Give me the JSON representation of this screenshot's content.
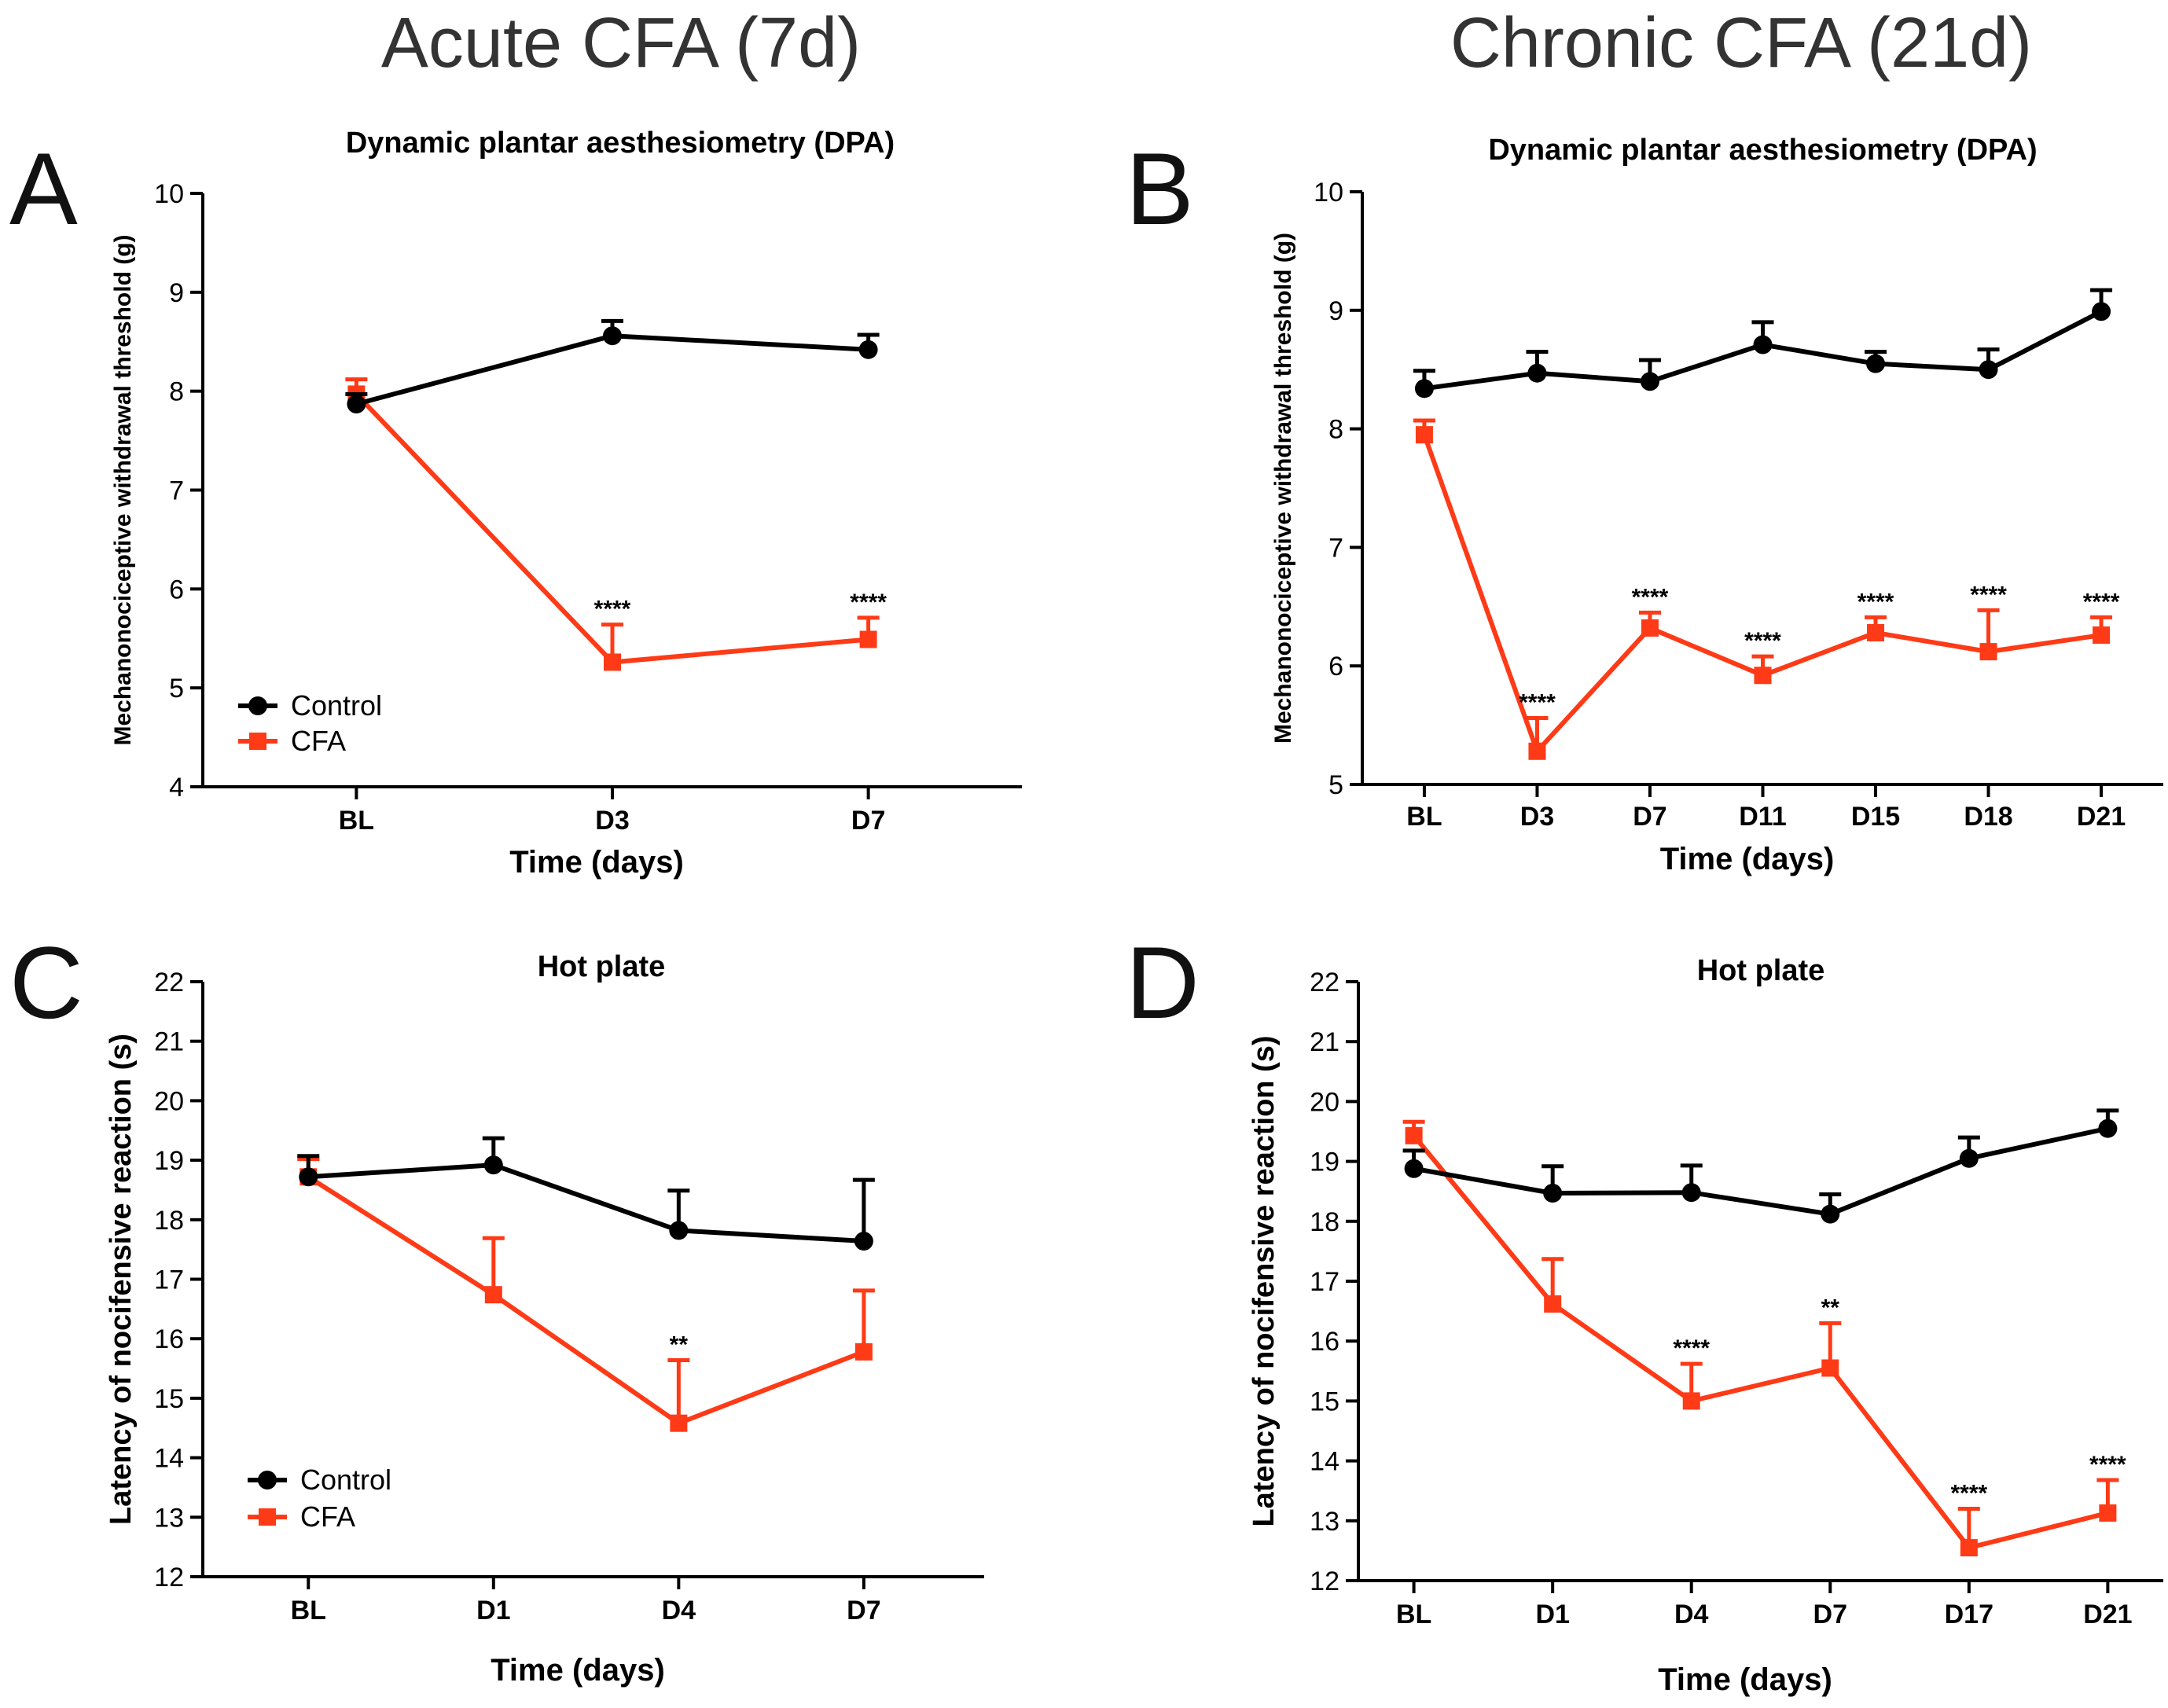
{
  "headers": {
    "acute": "Acute CFA (7d)",
    "chronic": "Chronic CFA (21d)"
  },
  "colors": {
    "control": "#000000",
    "cfa": "#ff3a17",
    "axis": "#000000"
  },
  "chart_data": [
    {
      "panel": "A",
      "type": "line",
      "title": "Dynamic plantar aesthesiometry (DPA)",
      "xlabel": "Time (days)",
      "ylabel": "Mechanonociceptive withdrawal threshold (g)",
      "ylim": [
        4,
        10
      ],
      "yticks": [
        4,
        5,
        6,
        7,
        8,
        9,
        10
      ],
      "categories": [
        "BL",
        "D3",
        "D7"
      ],
      "x": [
        0,
        5,
        10
      ],
      "xlim": [
        -3,
        13
      ],
      "legend": "bottom-left",
      "series": [
        {
          "name": "Control",
          "marker": "circle",
          "values": [
            7.87,
            8.56,
            8.42
          ],
          "err": [
            0.1,
            0.15,
            0.15
          ]
        },
        {
          "name": "CFA",
          "marker": "square",
          "values": [
            7.97,
            5.26,
            5.49
          ],
          "err": [
            0.15,
            0.38,
            0.22
          ]
        }
      ],
      "annotations": [
        {
          "index": 1,
          "label": "****"
        },
        {
          "index": 2,
          "label": "****"
        }
      ]
    },
    {
      "panel": "B",
      "type": "line",
      "title": "Dynamic plantar aesthesiometry (DPA)",
      "xlabel": "Time (days)",
      "ylabel": "Mechanonociceptive withdrawal threshold (g)",
      "ylim": [
        5,
        10
      ],
      "yticks": [
        5,
        6,
        7,
        8,
        9,
        10
      ],
      "categories": [
        "BL",
        "D3",
        "D7",
        "D11",
        "D15",
        "D18",
        "D21"
      ],
      "x": [
        0,
        1,
        2,
        3,
        4,
        5,
        6
      ],
      "xlim": [
        -0.55,
        6.55
      ],
      "legend": "none",
      "series": [
        {
          "name": "Control",
          "marker": "circle",
          "values": [
            8.34,
            8.47,
            8.4,
            8.71,
            8.55,
            8.5,
            8.99
          ],
          "err": [
            0.15,
            0.18,
            0.18,
            0.19,
            0.1,
            0.17,
            0.18
          ]
        },
        {
          "name": "CFA",
          "marker": "square",
          "values": [
            7.95,
            5.28,
            6.32,
            5.92,
            6.28,
            6.12,
            6.26
          ],
          "err": [
            0.12,
            0.28,
            0.13,
            0.16,
            0.13,
            0.35,
            0.15
          ]
        }
      ],
      "annotations": [
        {
          "index": 1,
          "label": "****"
        },
        {
          "index": 2,
          "label": "****"
        },
        {
          "index": 3,
          "label": "****"
        },
        {
          "index": 4,
          "label": "****"
        },
        {
          "index": 5,
          "label": "****"
        },
        {
          "index": 6,
          "label": "****"
        }
      ]
    },
    {
      "panel": "C",
      "type": "line",
      "title": "Hot plate",
      "xlabel": "Time (days)",
      "ylabel": "Latency of nocifensive reaction (s)",
      "ylim": [
        12,
        22
      ],
      "yticks": [
        12,
        13,
        14,
        15,
        16,
        17,
        18,
        19,
        20,
        21,
        22
      ],
      "categories": [
        "BL",
        "D1",
        "D4",
        "D7"
      ],
      "x": [
        0,
        1,
        2,
        3
      ],
      "xlim": [
        -0.57,
        3.65
      ],
      "legend": "bottom-left",
      "series": [
        {
          "name": "Control",
          "marker": "circle",
          "values": [
            18.72,
            18.92,
            17.82,
            17.64
          ],
          "err": [
            0.35,
            0.45,
            0.67,
            1.03
          ]
        },
        {
          "name": "CFA",
          "marker": "square",
          "values": [
            18.72,
            16.74,
            14.58,
            15.78
          ],
          "err": [
            0.3,
            0.95,
            1.06,
            1.03
          ]
        }
      ],
      "annotations": [
        {
          "index": 2,
          "label": "**"
        }
      ]
    },
    {
      "panel": "D",
      "type": "line",
      "title": "Hot plate",
      "xlabel": "Time (days)",
      "ylabel": "Latency of nocifensive reaction (s)",
      "ylim": [
        12,
        22
      ],
      "yticks": [
        12,
        13,
        14,
        15,
        16,
        17,
        18,
        19,
        20,
        21,
        22
      ],
      "categories": [
        "BL",
        "D1",
        "D4",
        "D7",
        "D17",
        "D21"
      ],
      "x": [
        0,
        1,
        2,
        3,
        4,
        5
      ],
      "xlim": [
        -0.4,
        5.4
      ],
      "legend": "none",
      "series": [
        {
          "name": "Control",
          "marker": "circle",
          "values": [
            18.88,
            18.47,
            18.48,
            18.12,
            19.05,
            19.55
          ],
          "err": [
            0.3,
            0.45,
            0.45,
            0.33,
            0.35,
            0.3
          ]
        },
        {
          "name": "CFA",
          "marker": "square",
          "values": [
            19.43,
            16.62,
            15.0,
            15.55,
            12.55,
            13.13
          ],
          "err": [
            0.23,
            0.75,
            0.62,
            0.75,
            0.65,
            0.55
          ]
        }
      ],
      "annotations": [
        {
          "index": 2,
          "label": "****"
        },
        {
          "index": 3,
          "label": "**"
        },
        {
          "index": 4,
          "label": "****"
        },
        {
          "index": 5,
          "label": "****"
        }
      ]
    }
  ]
}
